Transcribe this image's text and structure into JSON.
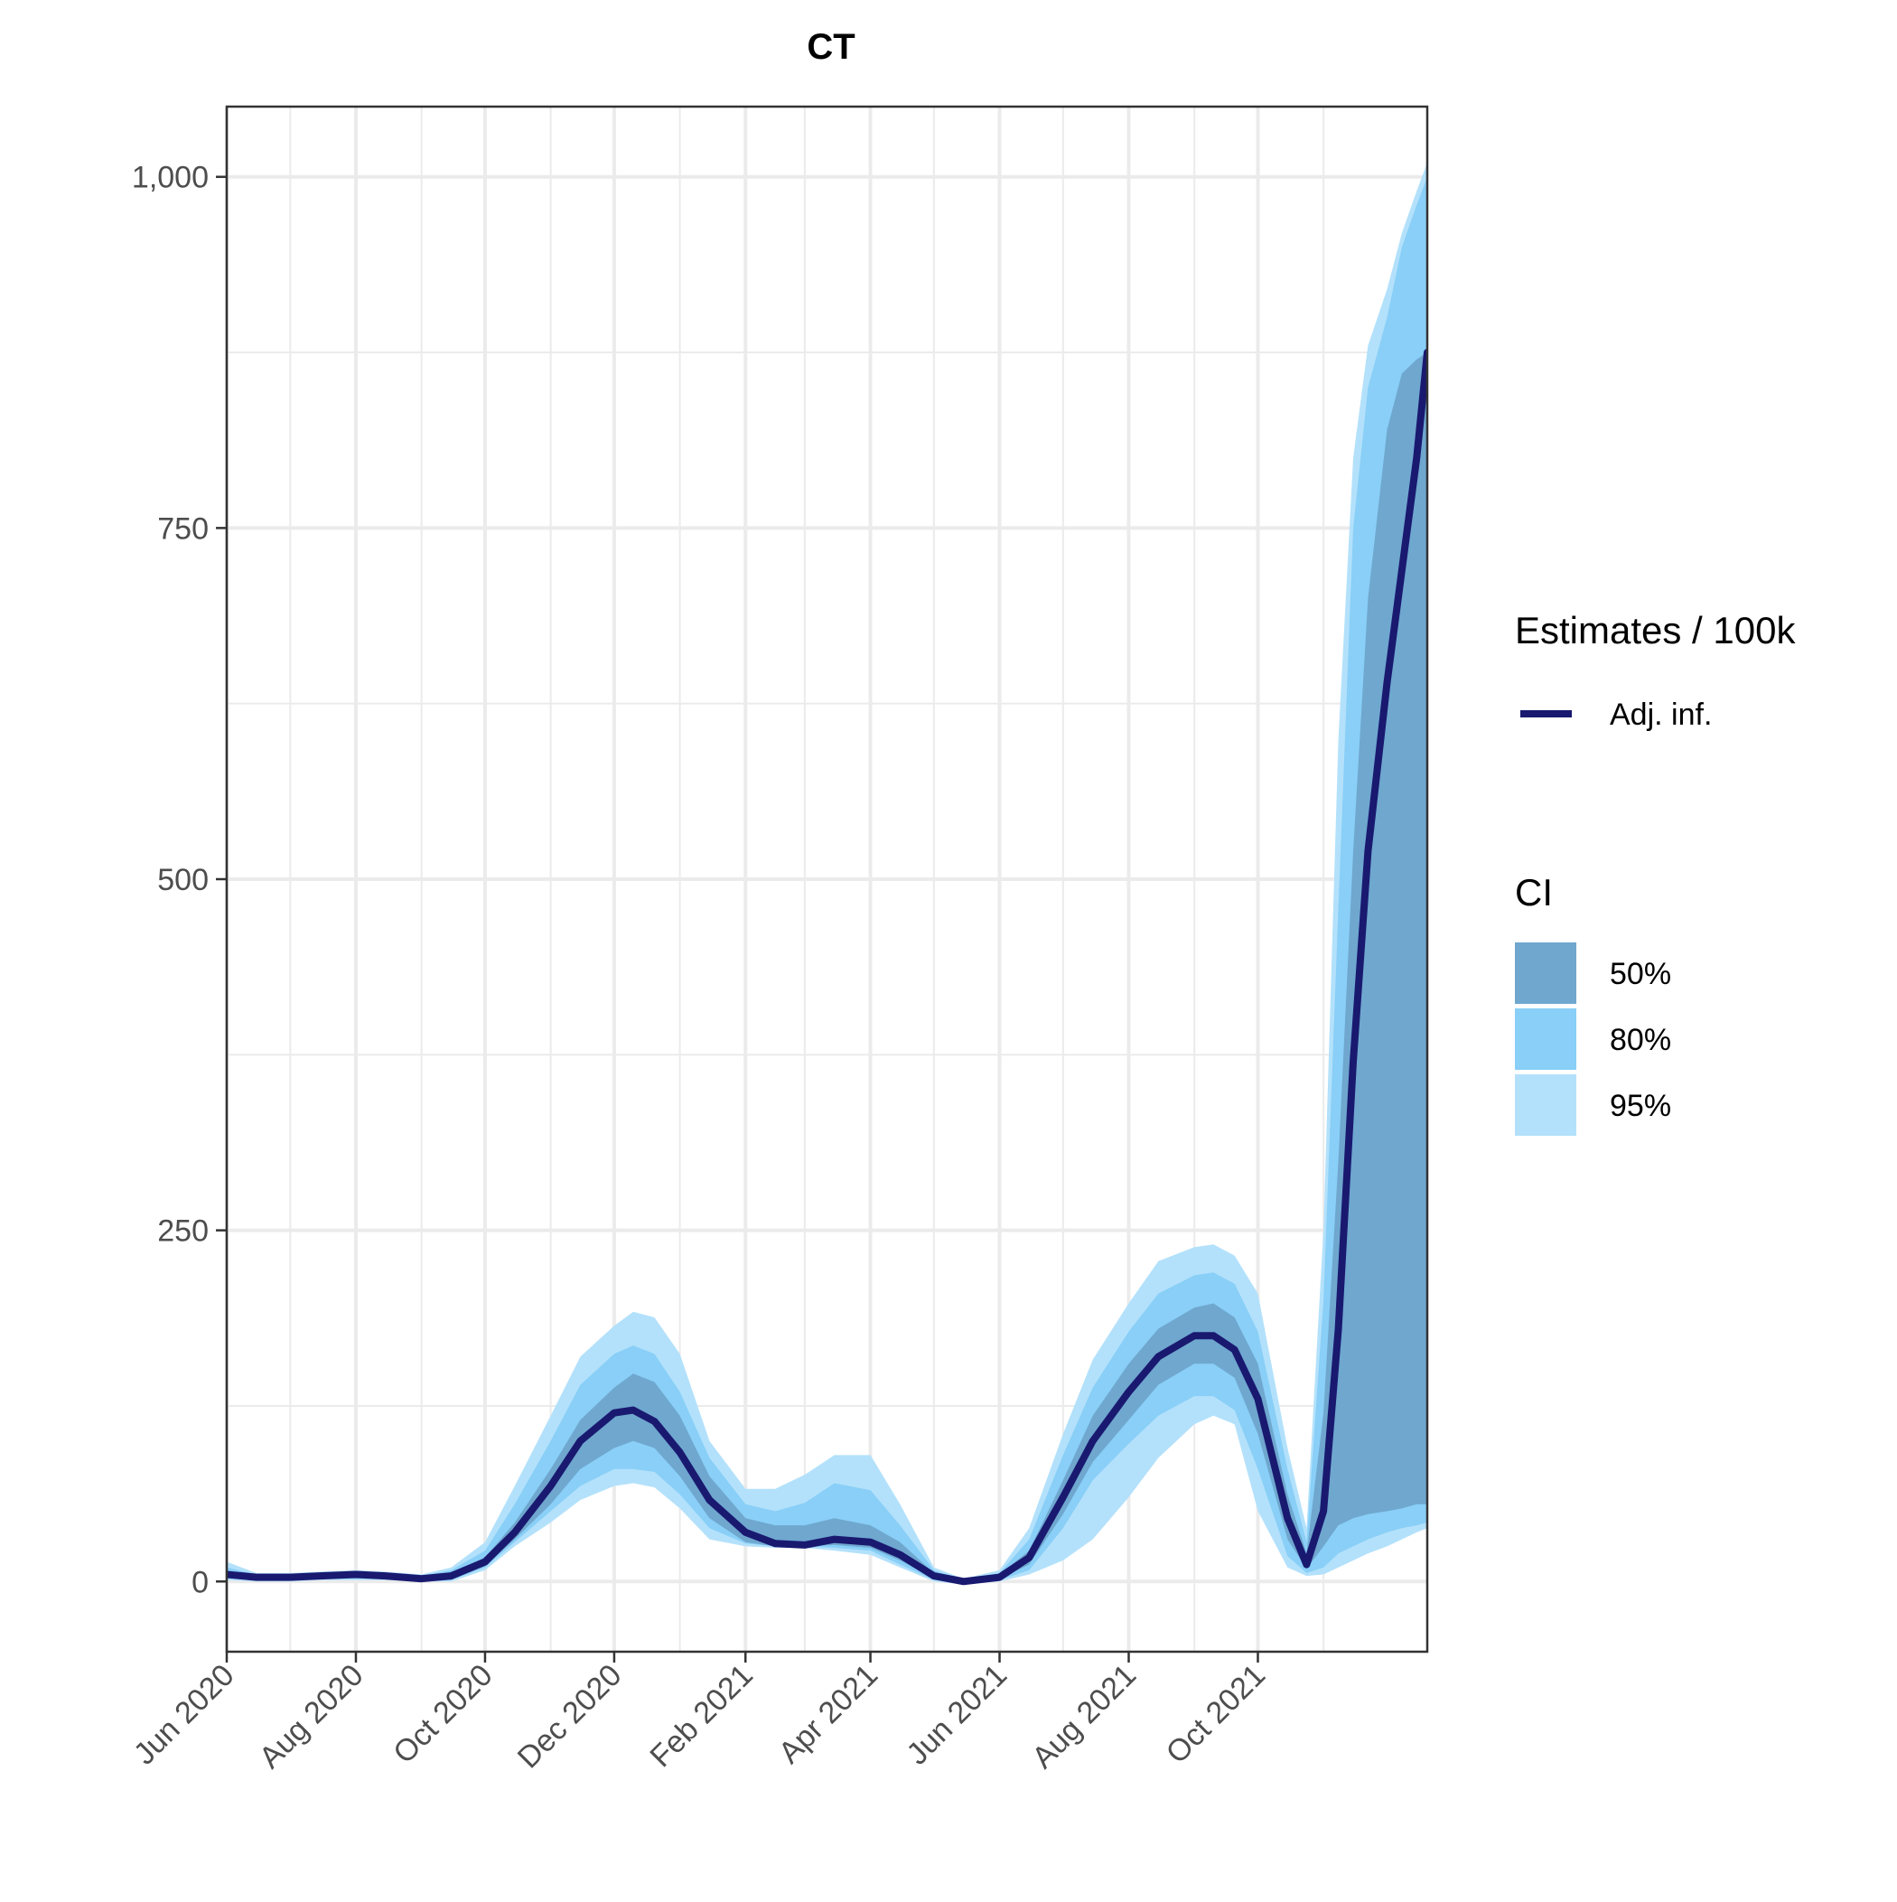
{
  "chart_data": {
    "type": "area",
    "title": "CT",
    "xlabel": "",
    "ylabel": "",
    "ylim": [
      -50,
      1050
    ],
    "y_ticks": [
      0,
      250,
      500,
      750,
      1000
    ],
    "y_tick_labels": [
      "0",
      "250",
      "500",
      "750",
      "1,000"
    ],
    "x_range": [
      "2020-06-01",
      "2021-12-20"
    ],
    "x_ticks": [
      "2020-06-01",
      "2020-08-01",
      "2020-10-01",
      "2020-12-01",
      "2021-02-01",
      "2021-04-01",
      "2021-06-01",
      "2021-08-01",
      "2021-10-01"
    ],
    "x_tick_labels": [
      "Jun 2020",
      "Aug 2020",
      "Oct 2020",
      "Dec 2020",
      "Feb 2021",
      "Apr 2021",
      "Jun 2021",
      "Aug 2021",
      "Oct 2021"
    ],
    "x_minor_ticks": [
      "2020-07-01",
      "2020-09-01",
      "2020-11-01",
      "2021-01-01",
      "2021-03-01",
      "2021-05-01",
      "2021-07-01",
      "2021-09-01",
      "2021-11-01"
    ],
    "grid": true,
    "legend_placement": "right",
    "legend": {
      "line_title": "Estimates / 100k",
      "line_label": "Adj. inf.",
      "ci_title": "CI",
      "ci_labels": [
        "50%",
        "80%",
        "95%"
      ]
    },
    "colors": {
      "line": "#191970",
      "ci50": "#6fa7cf",
      "ci80": "#89cff7",
      "ci95": "#b3e1fb",
      "grid": "#ebebeb",
      "border": "#333333"
    },
    "series": [
      {
        "name": "Adj. inf.",
        "x": [
          "2020-06-01",
          "2020-06-15",
          "2020-07-01",
          "2020-07-15",
          "2020-08-01",
          "2020-08-15",
          "2020-09-01",
          "2020-09-15",
          "2020-10-01",
          "2020-10-15",
          "2020-11-01",
          "2020-11-15",
          "2020-12-01",
          "2020-12-10",
          "2020-12-20",
          "2021-01-01",
          "2021-01-15",
          "2021-02-01",
          "2021-02-15",
          "2021-03-01",
          "2021-03-15",
          "2021-04-01",
          "2021-04-15",
          "2021-05-01",
          "2021-05-15",
          "2021-06-01",
          "2021-06-15",
          "2021-07-01",
          "2021-07-15",
          "2021-08-01",
          "2021-08-15",
          "2021-09-01",
          "2021-09-10",
          "2021-09-20",
          "2021-10-01",
          "2021-10-15",
          "2021-10-24",
          "2021-11-01",
          "2021-11-08",
          "2021-11-15",
          "2021-11-22",
          "2021-12-01",
          "2021-12-08",
          "2021-12-15",
          "2021-12-20"
        ],
        "y": [
          5,
          3,
          3,
          4,
          5,
          4,
          2,
          4,
          14,
          35,
          68,
          100,
          120,
          122,
          114,
          92,
          58,
          35,
          27,
          26,
          30,
          28,
          19,
          4,
          0,
          3,
          17,
          60,
          100,
          135,
          160,
          175,
          175,
          165,
          130,
          45,
          12,
          50,
          180,
          370,
          520,
          640,
          720,
          800,
          875
        ]
      }
    ],
    "bands": [
      {
        "name": "50%",
        "lower": [
          3,
          2,
          2,
          3,
          3,
          3,
          1,
          2,
          11,
          30,
          55,
          80,
          95,
          100,
          95,
          75,
          45,
          28,
          25,
          25,
          26,
          24,
          15,
          2,
          -1,
          2,
          12,
          48,
          85,
          115,
          140,
          155,
          155,
          145,
          105,
          30,
          9,
          25,
          40,
          45,
          48,
          50,
          52,
          55,
          55
        ],
        "upper": [
          7,
          4,
          4,
          5,
          6,
          5,
          3,
          6,
          17,
          42,
          80,
          115,
          138,
          148,
          142,
          118,
          75,
          45,
          40,
          40,
          45,
          40,
          28,
          6,
          1,
          5,
          22,
          72,
          118,
          155,
          180,
          195,
          198,
          188,
          155,
          62,
          20,
          120,
          300,
          520,
          700,
          820,
          860,
          870,
          875
        ]
      },
      {
        "name": "80%",
        "lower": [
          2,
          1,
          1,
          2,
          2,
          2,
          0,
          1,
          10,
          28,
          50,
          68,
          80,
          80,
          78,
          62,
          38,
          27,
          25,
          25,
          24,
          22,
          12,
          1,
          -1,
          1,
          8,
          38,
          72,
          98,
          118,
          132,
          132,
          122,
          80,
          18,
          6,
          10,
          20,
          25,
          30,
          35,
          38,
          40,
          42
        ],
        "upper": [
          10,
          5,
          5,
          6,
          7,
          6,
          4,
          8,
          22,
          55,
          100,
          140,
          162,
          168,
          162,
          135,
          88,
          55,
          50,
          56,
          70,
          65,
          40,
          8,
          1,
          6,
          30,
          90,
          138,
          178,
          205,
          218,
          220,
          212,
          178,
          80,
          28,
          200,
          480,
          750,
          850,
          900,
          950,
          980,
          1000
        ]
      },
      {
        "name": "95%",
        "lower": [
          1,
          0,
          0,
          1,
          1,
          1,
          0,
          0,
          8,
          25,
          42,
          58,
          68,
          70,
          67,
          52,
          30,
          25,
          24,
          24,
          22,
          19,
          10,
          0,
          -2,
          0,
          5,
          15,
          30,
          60,
          88,
          112,
          118,
          112,
          50,
          10,
          4,
          5,
          10,
          15,
          20,
          25,
          30,
          35,
          38
        ],
        "upper": [
          14,
          6,
          6,
          7,
          8,
          7,
          5,
          10,
          28,
          68,
          118,
          160,
          182,
          192,
          188,
          162,
          100,
          66,
          66,
          76,
          90,
          90,
          55,
          10,
          2,
          8,
          38,
          105,
          158,
          198,
          228,
          238,
          240,
          232,
          205,
          95,
          38,
          250,
          600,
          800,
          880,
          920,
          960,
          990,
          1010
        ]
      }
    ]
  }
}
